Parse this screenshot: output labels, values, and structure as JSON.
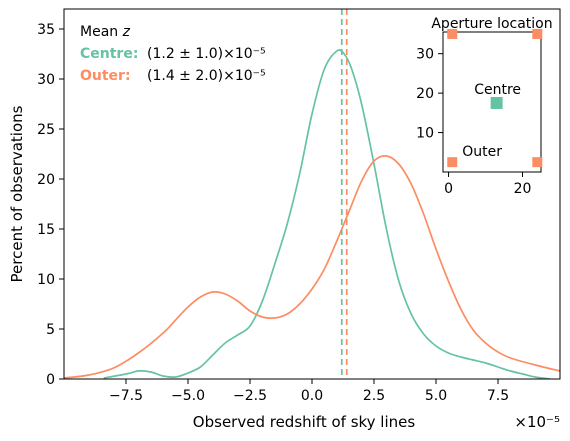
{
  "chart_data": {
    "type": "line",
    "xlabel": "Observed redshift of sky lines",
    "ylabel": "Percent of observations",
    "x_offset_label": "×10⁻⁵",
    "xlim": [
      -10,
      10
    ],
    "ylim": [
      0,
      37
    ],
    "xticks": [
      -7.5,
      -5.0,
      -2.5,
      0.0,
      2.5,
      5.0,
      7.5
    ],
    "xtick_labels": [
      "−7.5",
      "−5.0",
      "−2.5",
      "0.0",
      "2.5",
      "5.0",
      "7.5"
    ],
    "yticks": [
      0,
      5,
      10,
      15,
      20,
      25,
      30,
      35
    ],
    "ytick_labels": [
      "0",
      "5",
      "10",
      "15",
      "20",
      "25",
      "30",
      "35"
    ],
    "grid": false,
    "series": [
      {
        "name": "Centre",
        "color": "#66c2a5",
        "mean": 1.2,
        "x": [
          -8.4,
          -7.5,
          -7.0,
          -6.5,
          -6.0,
          -5.5,
          -5.0,
          -4.5,
          -4.0,
          -3.5,
          -3.0,
          -2.5,
          -2.0,
          -1.5,
          -1.0,
          -0.5,
          0.0,
          0.5,
          1.0,
          1.3,
          1.6,
          2.0,
          2.5,
          3.0,
          3.5,
          4.0,
          4.5,
          5.0,
          5.5,
          6.0,
          6.5,
          7.0,
          7.5,
          8.0,
          8.5,
          9.0,
          9.6
        ],
        "y": [
          0.1,
          0.5,
          0.8,
          0.7,
          0.3,
          0.2,
          0.6,
          1.2,
          2.4,
          3.6,
          4.4,
          5.3,
          7.8,
          11.5,
          15.5,
          20.5,
          26.5,
          31.0,
          32.8,
          32.5,
          31.0,
          27.5,
          21.5,
          15.0,
          9.8,
          6.5,
          4.5,
          3.3,
          2.6,
          2.2,
          1.9,
          1.6,
          1.2,
          0.8,
          0.5,
          0.2,
          0.0
        ]
      },
      {
        "name": "Outer",
        "color": "#fc8d62",
        "mean": 1.4,
        "x": [
          -10.0,
          -9.0,
          -8.0,
          -7.0,
          -6.0,
          -5.5,
          -5.0,
          -4.5,
          -4.0,
          -3.5,
          -3.0,
          -2.5,
          -2.0,
          -1.5,
          -1.0,
          -0.5,
          0.0,
          0.5,
          1.0,
          1.5,
          2.0,
          2.5,
          3.0,
          3.5,
          4.0,
          4.5,
          5.0,
          5.5,
          6.0,
          6.5,
          7.0,
          7.5,
          8.0,
          9.0,
          10.0
        ],
        "y": [
          0.1,
          0.4,
          1.1,
          2.6,
          4.6,
          5.9,
          7.2,
          8.2,
          8.7,
          8.5,
          7.8,
          6.8,
          6.2,
          6.1,
          6.5,
          7.5,
          9.0,
          11.0,
          13.8,
          16.8,
          19.8,
          21.8,
          22.3,
          21.5,
          19.5,
          16.5,
          13.0,
          9.8,
          7.0,
          4.9,
          3.6,
          2.7,
          2.1,
          1.4,
          0.8
        ]
      }
    ],
    "annotation": {
      "title": "Mean z",
      "rows": [
        {
          "label": "Centre:",
          "value": "(1.2 ± 1.0)×10⁻⁵",
          "color": "#66c2a5"
        },
        {
          "label": "Outer:",
          "value": "(1.4 ± 2.0)×10⁻⁵",
          "color": "#fc8d62"
        }
      ]
    },
    "inset": {
      "title": "Aperture location",
      "xlim": [
        -1.5,
        25
      ],
      "ylim": [
        0,
        35.5
      ],
      "xticks": [
        0,
        20
      ],
      "xtick_labels": [
        "0",
        "20"
      ],
      "yticks": [
        10,
        20,
        30
      ],
      "ytick_labels": [
        "10",
        "20",
        "30"
      ],
      "centre_label": "Centre",
      "outer_label": "Outer",
      "centre_point": {
        "x": 13,
        "y": 17.5,
        "color": "#66c2a5"
      },
      "outer_points": [
        {
          "x": 1,
          "y": 35,
          "color": "#fc8d62"
        },
        {
          "x": 24,
          "y": 35,
          "color": "#fc8d62"
        },
        {
          "x": 1,
          "y": 2.5,
          "color": "#fc8d62"
        },
        {
          "x": 24,
          "y": 2.5,
          "color": "#fc8d62"
        }
      ]
    }
  }
}
